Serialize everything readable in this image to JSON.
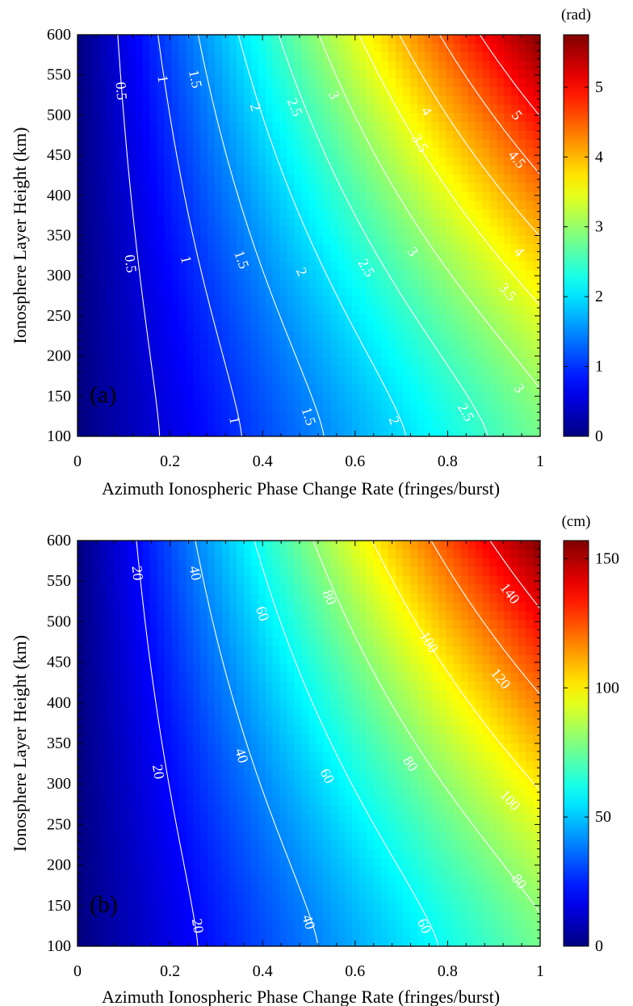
{
  "chart_data": [
    {
      "type": "heatmap",
      "panel_label": "(a)",
      "xlabel": "Azimuth Ionospheric Phase Change Rate (fringes/burst)",
      "ylabel": "Ionosphere Layer Height (km)",
      "xlim": [
        0,
        1
      ],
      "ylim": [
        100,
        600
      ],
      "x_ticks": [
        0,
        0.2,
        0.4,
        0.6,
        0.8,
        1
      ],
      "x_tick_labels": [
        "0",
        "0.2",
        "0.4",
        "0.6",
        "0.8",
        "1"
      ],
      "y_ticks": [
        100,
        150,
        200,
        250,
        300,
        350,
        400,
        450,
        500,
        550,
        600
      ],
      "y_tick_labels": [
        "100",
        "150",
        "200",
        "250",
        "300",
        "350",
        "400",
        "450",
        "500",
        "550",
        "600"
      ],
      "colorbar": {
        "unit": "(rad)",
        "range": [
          0,
          5.75
        ],
        "ticks": [
          0,
          1,
          2,
          3,
          4,
          5
        ],
        "tick_labels": [
          "0",
          "1",
          "2",
          "3",
          "4",
          "5"
        ],
        "colormap": "jet"
      },
      "surface": {
        "formula": "value = peak * x * ((1 - w) + w * ((h - 100) / 500)^p)",
        "peak": 5.75,
        "low_height_fraction": 0.51,
        "curvature": 1.3,
        "value_at_x1_h100": 2.95,
        "value_at_x1_h600": 5.75
      },
      "contours": [
        {
          "level": 0.5,
          "labels": [
            {
              "text": "0.5",
              "x": 0.095,
              "h": 530
            },
            {
              "text": "0.5",
              "x": 0.115,
              "h": 315
            }
          ]
        },
        {
          "level": 1,
          "labels": [
            {
              "text": "1",
              "x": 0.185,
              "h": 545
            },
            {
              "text": "1",
              "x": 0.235,
              "h": 320
            },
            {
              "text": "1",
              "x": 0.34,
              "h": 120
            }
          ]
        },
        {
          "level": 1.5,
          "labels": [
            {
              "text": "1.5",
              "x": 0.255,
              "h": 545
            },
            {
              "text": "1.5",
              "x": 0.355,
              "h": 320
            },
            {
              "text": "1.5",
              "x": 0.5,
              "h": 125
            }
          ]
        },
        {
          "level": 2,
          "labels": [
            {
              "text": "2",
              "x": 0.385,
              "h": 510
            },
            {
              "text": "2",
              "x": 0.485,
              "h": 305
            },
            {
              "text": "2",
              "x": 0.685,
              "h": 120
            }
          ]
        },
        {
          "level": 2.5,
          "labels": [
            {
              "text": "2.5",
              "x": 0.47,
              "h": 510
            },
            {
              "text": "2.5",
              "x": 0.625,
              "h": 310
            },
            {
              "text": "2.5",
              "x": 0.84,
              "h": 130
            }
          ]
        },
        {
          "level": 3,
          "labels": [
            {
              "text": "3",
              "x": 0.555,
              "h": 525
            },
            {
              "text": "3",
              "x": 0.725,
              "h": 330
            },
            {
              "text": "3",
              "x": 0.955,
              "h": 160
            }
          ]
        },
        {
          "level": 3.5,
          "labels": [
            {
              "text": "3.5",
              "x": 0.74,
              "h": 465
            },
            {
              "text": "3.5",
              "x": 0.93,
              "h": 280
            }
          ]
        },
        {
          "level": 4,
          "labels": [
            {
              "text": "4",
              "x": 0.755,
              "h": 505
            },
            {
              "text": "4",
              "x": 0.955,
              "h": 330
            }
          ]
        },
        {
          "level": 4.5,
          "labels": [
            {
              "text": "4.5",
              "x": 0.95,
              "h": 445
            }
          ]
        },
        {
          "level": 5,
          "labels": [
            {
              "text": "5",
              "x": 0.95,
              "h": 500
            }
          ]
        }
      ]
    },
    {
      "type": "heatmap",
      "panel_label": "(b)",
      "xlabel": "Azimuth Ionospheric Phase Change Rate (fringes/burst)",
      "ylabel": "Ionosphere Layer Height (km)",
      "xlim": [
        0,
        1
      ],
      "ylim": [
        100,
        600
      ],
      "x_ticks": [
        0,
        0.2,
        0.4,
        0.6,
        0.8,
        1
      ],
      "x_tick_labels": [
        "0",
        "0.2",
        "0.4",
        "0.6",
        "0.8",
        "1"
      ],
      "y_ticks": [
        100,
        150,
        200,
        250,
        300,
        350,
        400,
        450,
        500,
        550,
        600
      ],
      "y_tick_labels": [
        "100",
        "150",
        "200",
        "250",
        "300",
        "350",
        "400",
        "450",
        "500",
        "550",
        "600"
      ],
      "colorbar": {
        "unit": "(cm)",
        "range": [
          0,
          157
        ],
        "ticks": [
          0,
          50,
          100,
          150
        ],
        "tick_labels": [
          "0",
          "50",
          "100",
          "150"
        ],
        "colormap": "jet"
      },
      "surface": {
        "formula": "value = peak * x * ((1 - w) + w * ((h - 100) / 500)^p)",
        "peak": 157,
        "low_height_fraction": 0.51,
        "curvature": 1.3,
        "value_at_x1_h100": 80,
        "value_at_x1_h600": 157
      },
      "contours": [
        {
          "level": 20,
          "labels": [
            {
              "text": "20",
              "x": 0.13,
              "h": 560
            },
            {
              "text": "20",
              "x": 0.175,
              "h": 315
            },
            {
              "text": "20",
              "x": 0.26,
              "h": 125
            }
          ]
        },
        {
          "level": 40,
          "labels": [
            {
              "text": "40",
              "x": 0.255,
              "h": 560
            },
            {
              "text": "40",
              "x": 0.355,
              "h": 335
            },
            {
              "text": "40",
              "x": 0.5,
              "h": 130
            }
          ]
        },
        {
          "level": 60,
          "labels": [
            {
              "text": "60",
              "x": 0.4,
              "h": 510
            },
            {
              "text": "60",
              "x": 0.54,
              "h": 310
            },
            {
              "text": "60",
              "x": 0.75,
              "h": 125
            }
          ]
        },
        {
          "level": 80,
          "labels": [
            {
              "text": "80",
              "x": 0.545,
              "h": 530
            },
            {
              "text": "80",
              "x": 0.72,
              "h": 325
            },
            {
              "text": "80",
              "x": 0.955,
              "h": 180
            }
          ]
        },
        {
          "level": 100,
          "labels": [
            {
              "text": "100",
              "x": 0.76,
              "h": 475
            },
            {
              "text": "100",
              "x": 0.935,
              "h": 280
            }
          ]
        },
        {
          "level": 120,
          "labels": [
            {
              "text": "120",
              "x": 0.915,
              "h": 430
            }
          ]
        },
        {
          "level": 140,
          "labels": [
            {
              "text": "140",
              "x": 0.935,
              "h": 535
            }
          ]
        }
      ]
    }
  ]
}
